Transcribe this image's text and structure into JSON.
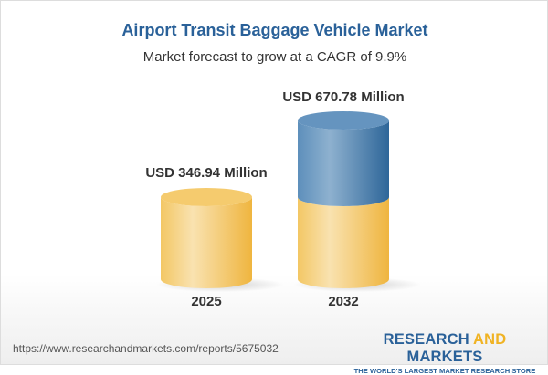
{
  "title": "Airport Transit Baggage Vehicle Market",
  "subtitle": "Market forecast to grow at a CAGR of 9.9%",
  "chart_data": {
    "type": "bar",
    "style": "3d-cylinder",
    "categories": [
      "2025",
      "2032"
    ],
    "values": [
      346.94,
      670.78
    ],
    "data_labels": [
      "USD 346.94 Million",
      "USD 670.78 Million"
    ],
    "unit": "USD Million",
    "colors": {
      "base": "#f3c35b",
      "growth": "#3f78a8"
    },
    "grid": false
  },
  "footer": {
    "url": "https://www.researchandmarkets.com/reports/5675032",
    "logo_part1": "RESEARCH ",
    "logo_part2": "AND",
    "logo_part3": " MARKETS",
    "tagline": "THE WORLD'S LARGEST MARKET RESEARCH STORE"
  }
}
